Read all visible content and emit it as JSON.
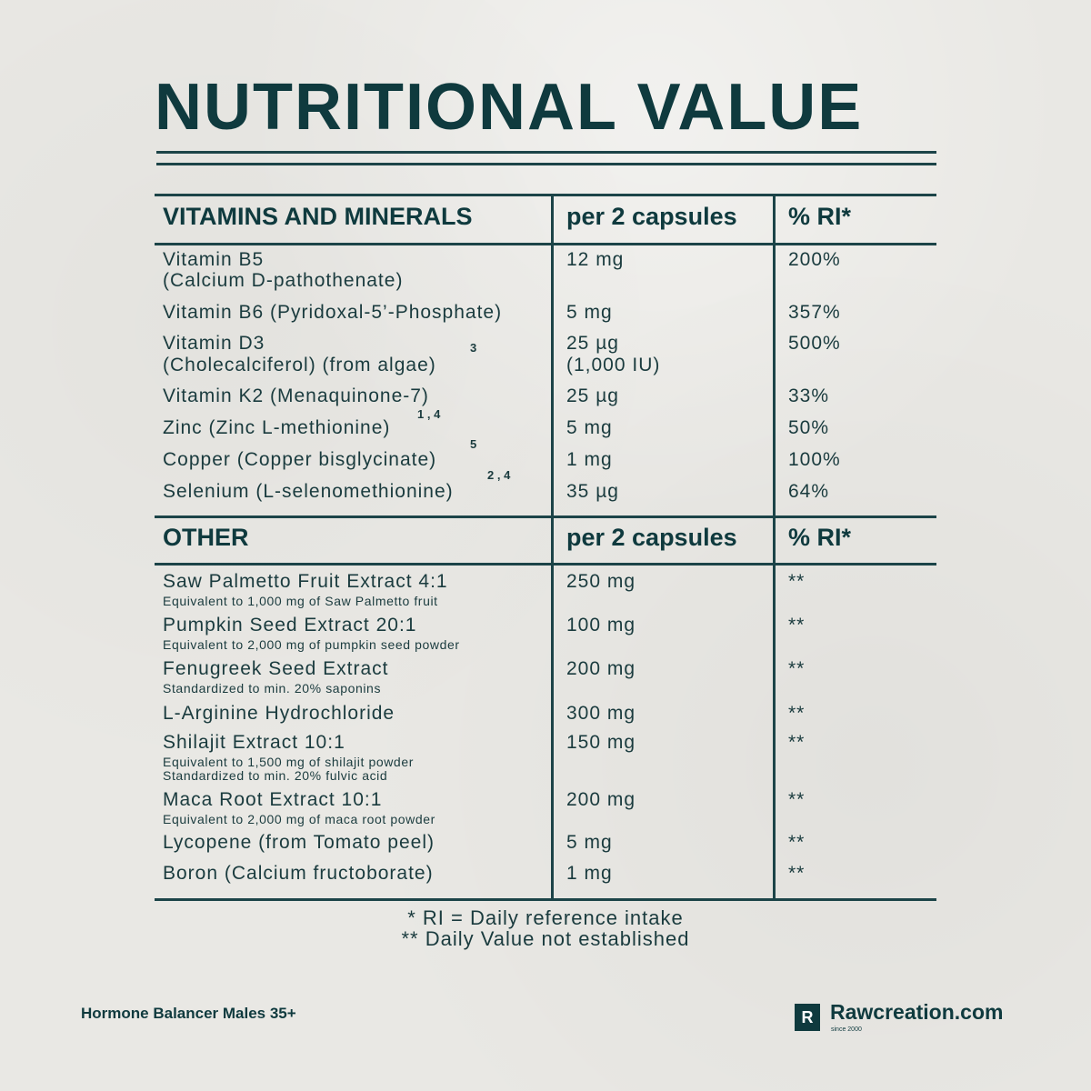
{
  "title": "NUTRITIONAL VALUE",
  "sections": [
    {
      "header": "VITAMINS AND MINERALS",
      "col2": "per 2 capsules",
      "col3": "% RI*",
      "rows": [
        {
          "name": "Vitamin B5",
          "name2": "(Calcium D-pathothenate)",
          "amount": "12 mg",
          "ri": "200%"
        },
        {
          "name": "Vitamin B6 (Pyridoxal-5’-Phosphate)",
          "amount": "5 mg",
          "ri": "357%"
        },
        {
          "name": "Vitamin D3",
          "name2": "(Cholecalciferol) (from algae)",
          "sup": "3",
          "amount": "25 µg",
          "amount2": "(1,000 IU)",
          "ri": "500%"
        },
        {
          "name": "Vitamin K2 (Menaquinone-7)",
          "amount": "25 µg",
          "ri": "33%"
        },
        {
          "name": "Zinc (Zinc L-methionine)",
          "sup": "1 , 4",
          "amount": "5 mg",
          "ri": "50%"
        },
        {
          "name": "Copper (Copper bisglycinate)",
          "sup": "5",
          "amount": "1 mg",
          "ri": "100%"
        },
        {
          "name": "Selenium (L-selenomethionine)",
          "sup": "2 , 4",
          "amount": "35 µg",
          "ri": "64%"
        }
      ]
    },
    {
      "header": "OTHER",
      "col2": "per 2 capsules",
      "col3": "% RI*",
      "rows": [
        {
          "name": "Saw Palmetto Fruit Extract 4:1",
          "note": "Equivalent to 1,000 mg of Saw Palmetto fruit",
          "amount": "250 mg",
          "ri": "**"
        },
        {
          "name": "Pumpkin Seed Extract 20:1",
          "note": "Equivalent to 2,000 mg of pumpkin seed powder",
          "amount": "100 mg",
          "ri": "**"
        },
        {
          "name": "Fenugreek Seed Extract",
          "note": "Standardized to min. 20% saponins",
          "amount": "200 mg",
          "ri": "**"
        },
        {
          "name": "L-Arginine Hydrochloride",
          "amount": "300 mg",
          "ri": "**"
        },
        {
          "name": "Shilajit Extract 10:1",
          "note": "Equivalent to 1,500 mg of shilajit powder",
          "note2": "Standardized to min. 20% fulvic acid",
          "amount": "150 mg",
          "ri": "**"
        },
        {
          "name": "Maca Root Extract 10:1",
          "note": "Equivalent to 2,000 mg of maca root powder",
          "amount": "200 mg",
          "ri": "**"
        },
        {
          "name": "Lycopene (from Tomato peel)",
          "amount": "5 mg",
          "ri": "**"
        },
        {
          "name": "Boron (Calcium fructoborate)",
          "amount": "1 mg",
          "ri": "**"
        }
      ]
    }
  ],
  "footnotes": [
    "* RI = Daily reference intake",
    "** Daily Value not established"
  ],
  "footer": {
    "product": "Hormone Balancer Males 35+",
    "logo_letter": "R",
    "brand": "Rawcreation.com",
    "since": "since 2000"
  }
}
